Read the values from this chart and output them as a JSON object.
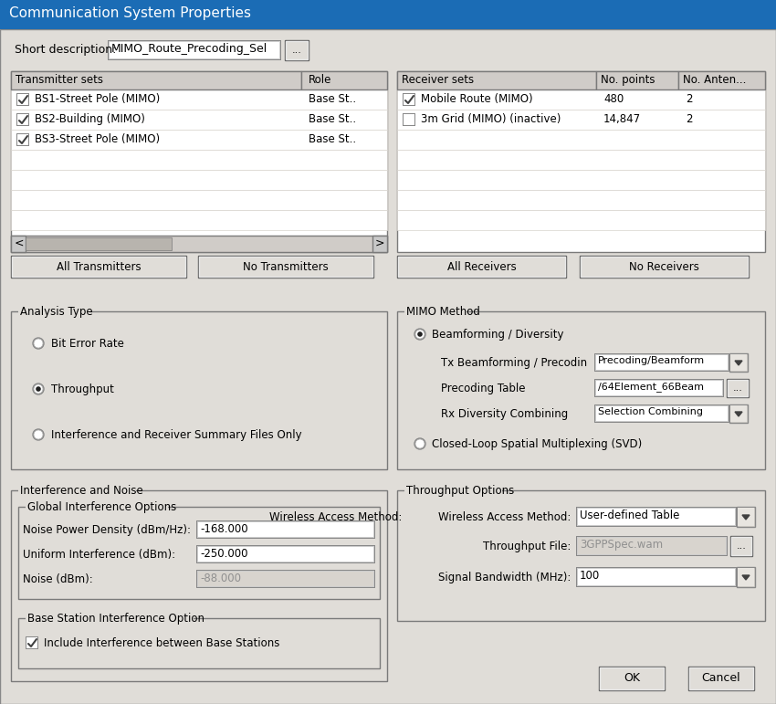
{
  "title": "Communication System Properties",
  "title_bg": "#1b6cb5",
  "title_color": "white",
  "bg_color": "#e0ddd8",
  "short_desc_label": "Short description:",
  "short_desc_value": "MIMO_Route_Precoding_Sel",
  "tx_sets_header": [
    "Transmitter sets",
    "Role"
  ],
  "tx_rows": [
    [
      "BS1-Street Pole (MIMO)",
      "Base St.."
    ],
    [
      "BS2-Building (MIMO)",
      "Base St.."
    ],
    [
      "BS3-Street Pole (MIMO)",
      "Base St.."
    ]
  ],
  "rx_sets_header": [
    "Receiver sets",
    "No. points",
    "No. Anten..."
  ],
  "rx_rows": [
    [
      "Mobile Route (MIMO)",
      "480",
      "2",
      true
    ],
    [
      "3m Grid (MIMO) (inactive)",
      "14,847",
      "2",
      false
    ]
  ],
  "btn_all_tx": "All Transmitters",
  "btn_no_tx": "No Transmitters",
  "btn_all_rx": "All Receivers",
  "btn_no_rx": "No Receivers",
  "analysis_type_label": "Analysis Type",
  "radio_bit_error": "Bit Error Rate",
  "radio_throughput": "Throughput",
  "radio_interference": "Interference and Receiver Summary Files Only",
  "mimo_method_label": "MIMO Method",
  "radio_beamforming": "Beamforming / Diversity",
  "radio_closed_loop": "Closed-Loop Spatial Multiplexing (SVD)",
  "tx_beamforming_label": "Tx Beamforming / Precodin",
  "tx_beamforming_value": "Precoding/Beamform",
  "precoding_table_label": "Precoding Table",
  "precoding_table_value": "/64Element_66Beam",
  "precoding_table_value_display": "./64Element_66Beam",
  "rx_diversity_label": "Rx Diversity Combining",
  "rx_diversity_value": "Selection Combining",
  "interference_noise_label": "Interference and Noise",
  "global_interference_label": "Global Interference Options",
  "noise_power_label": "Noise Power Density (dBm/Hz):",
  "noise_power_value": "-168.000",
  "uniform_interference_label": "Uniform Interference (dBm):",
  "uniform_interference_value": "-250.000",
  "noise_dbm_label": "Noise (dBm):",
  "noise_dbm_value": "-88.000",
  "base_station_label": "Base Station Interference Option",
  "include_interference": "Include Interference between Base Stations",
  "throughput_options_label": "Throughput Options",
  "wireless_access_label": "Wireless Access Method:",
  "wireless_access_value": "User-defined Table",
  "throughput_file_label": "Throughput File:",
  "throughput_file_value": "3GPPSpec.wam",
  "signal_bandwidth_label": "Signal Bandwidth (MHz):",
  "signal_bandwidth_value": "100",
  "ok_btn": "OK",
  "cancel_btn": "Cancel",
  "text_black": "#000000",
  "text_blue": "#00008b",
  "mid_gray": "#7a7a7a",
  "light_gray": "#c8c8c8",
  "white": "#ffffff",
  "header_gray": "#d0ccc8",
  "disabled_field": "#d8d4ce",
  "scrollbar_track": "#b8b4ae"
}
